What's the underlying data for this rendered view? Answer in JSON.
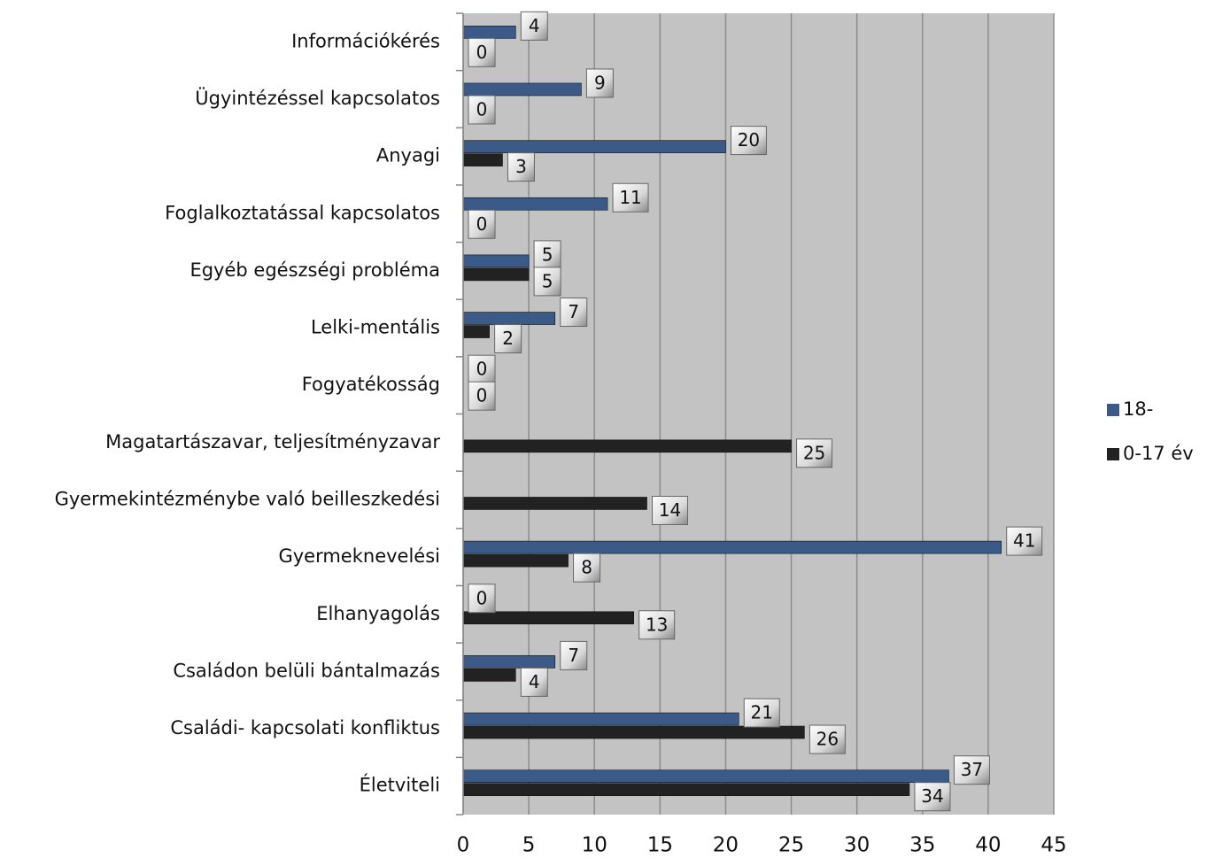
{
  "chart_data": {
    "type": "hbar",
    "categories": [
      "Információkérés",
      "Ügyintézéssel kapcsolatos",
      "Anyagi",
      "Foglalkoztatással kapcsolatos",
      "Egyéb egészségi probléma",
      "Lelki-mentális",
      "Fogyatékosság",
      "Magatartászavar, teljesítményzavar",
      "Gyermekintézménybe való beilleszkedési",
      "Gyermeknevelési",
      "Elhanyagolás",
      "Családon belüli bántalmazás",
      "Családi- kapcsolati konfliktus",
      "Életviteli"
    ],
    "series": [
      {
        "name": "18-",
        "color": "#3b5a87",
        "values": [
          4,
          9,
          20,
          11,
          5,
          7,
          0,
          null,
          null,
          41,
          0,
          7,
          21,
          37
        ]
      },
      {
        "name": "0-17 év",
        "color": "#222222",
        "values": [
          0,
          0,
          3,
          0,
          5,
          2,
          0,
          25,
          14,
          8,
          13,
          4,
          26,
          34
        ]
      }
    ],
    "xlim": [
      0,
      45
    ],
    "xticks": [
      0,
      5,
      10,
      15,
      20,
      25,
      30,
      35,
      40,
      45
    ],
    "grid": true,
    "legend": "right"
  }
}
